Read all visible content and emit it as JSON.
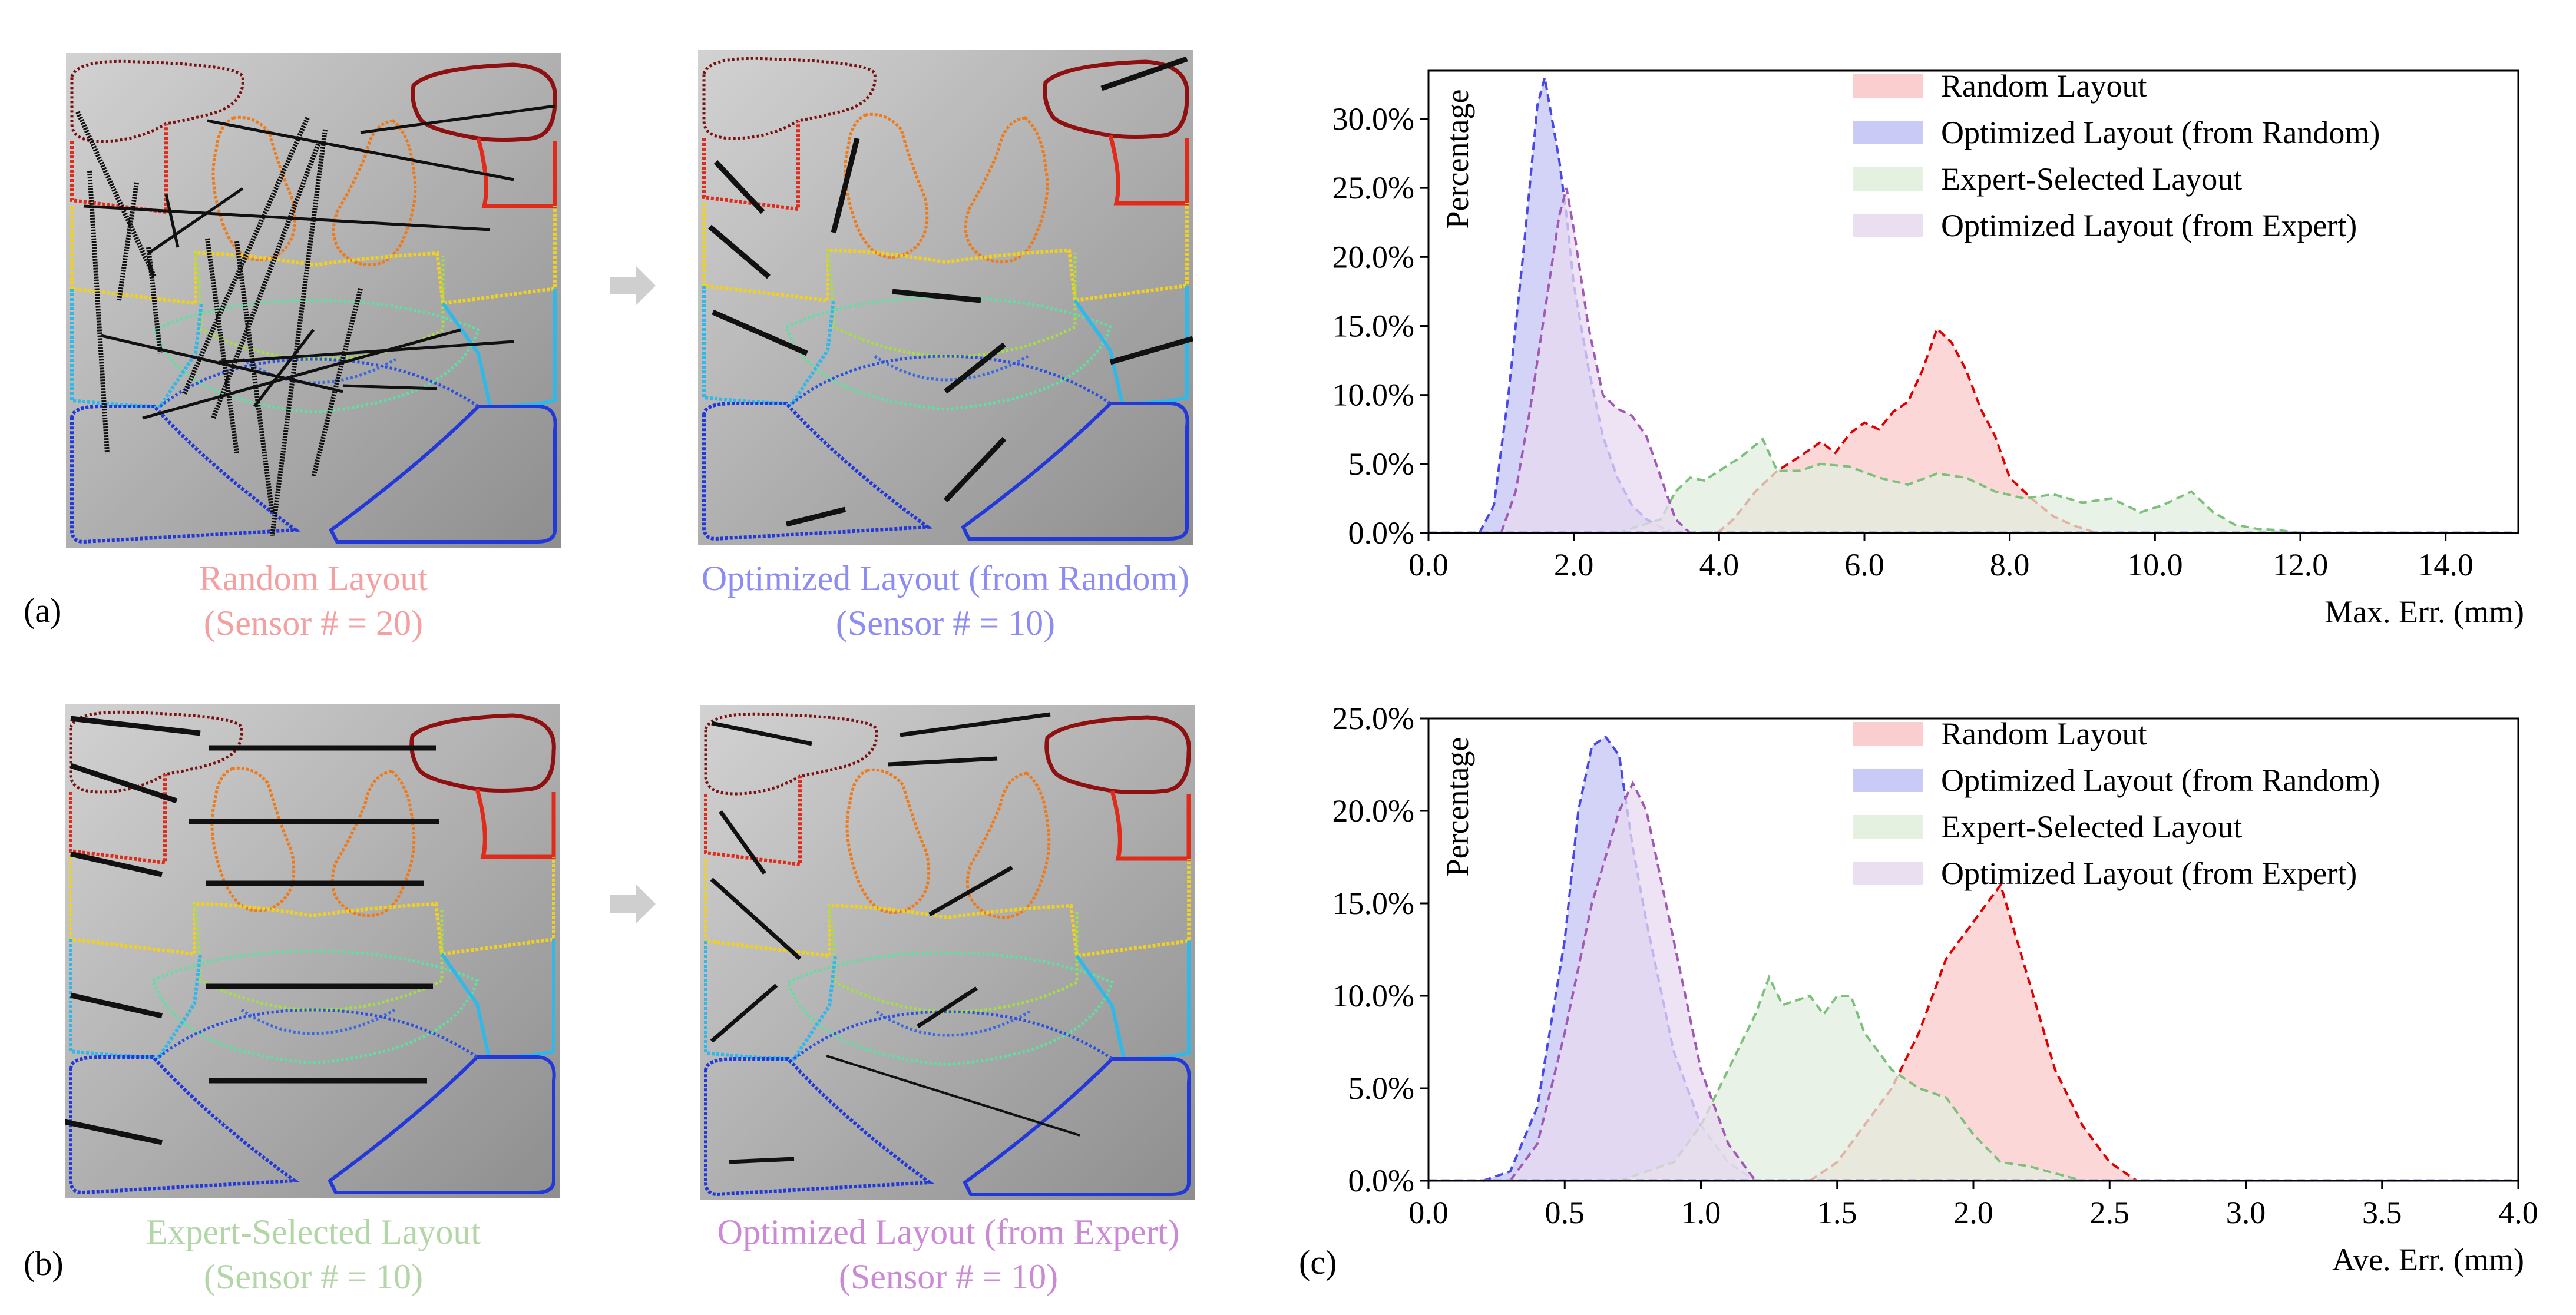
{
  "panels": {
    "a": "(a)",
    "b": "(b)",
    "c": "(c)"
  },
  "layouts": {
    "random": {
      "title": "Random Layout",
      "subtitle": "(Sensor # = 20)",
      "color": "#f4a0a0"
    },
    "opt_random": {
      "title": "Optimized Layout (from Random)",
      "subtitle": "(Sensor # = 10)",
      "color": "#8c8cf2"
    },
    "expert": {
      "title": "Expert-Selected Layout",
      "subtitle": "(Sensor # = 10)",
      "color": "#b2d6a6"
    },
    "opt_expert": {
      "title": "Optimized Layout (from Expert)",
      "subtitle": "(Sensor # = 10)",
      "color": "#cc8ad6"
    }
  },
  "chart_data": [
    {
      "type": "area",
      "title": "",
      "xlabel": "Max. Err. (mm)",
      "ylabel": "Percentage",
      "xlim": [
        0,
        15
      ],
      "ylim": [
        0,
        0.335
      ],
      "xticks": [
        "0.0",
        "2.0",
        "4.0",
        "6.0",
        "8.0",
        "10.0",
        "12.0",
        "14.0"
      ],
      "yticks": [
        "0.0%",
        "5.0%",
        "10.0%",
        "15.0%",
        "20.0%",
        "25.0%",
        "30.0%"
      ],
      "legend": [
        "Random Layout",
        "Optimized Layout (from Random)",
        "Expert-Selected Layout",
        "Optimized Layout (from Expert)"
      ],
      "legend_position": "top-right",
      "series": [
        {
          "name": "Random Layout",
          "color": "#e00000",
          "fill": "#f9c9c9",
          "x": [
            3.8,
            4.0,
            4.2,
            4.5,
            4.8,
            5.1,
            5.4,
            5.6,
            5.8,
            6.0,
            6.2,
            6.4,
            6.6,
            6.8,
            7.0,
            7.2,
            7.4,
            7.6,
            7.8,
            8.0,
            8.3,
            8.6,
            8.9,
            9.2,
            9.5
          ],
          "y": [
            0.0,
            0.001,
            0.01,
            0.03,
            0.045,
            0.055,
            0.066,
            0.058,
            0.072,
            0.08,
            0.075,
            0.088,
            0.095,
            0.118,
            0.148,
            0.138,
            0.118,
            0.09,
            0.07,
            0.04,
            0.025,
            0.012,
            0.005,
            0.0,
            0.0
          ]
        },
        {
          "name": "Optimized Layout (from Random)",
          "color": "#4848e6",
          "fill": "#c4c4f5",
          "x": [
            0.7,
            0.9,
            1.1,
            1.3,
            1.5,
            1.6,
            1.7,
            1.8,
            1.9,
            2.0,
            2.2,
            2.4,
            2.6,
            2.8,
            3.0,
            3.2,
            3.4
          ],
          "y": [
            0.0,
            0.02,
            0.1,
            0.2,
            0.31,
            0.33,
            0.3,
            0.27,
            0.23,
            0.18,
            0.12,
            0.07,
            0.04,
            0.02,
            0.01,
            0.004,
            0.0
          ]
        },
        {
          "name": "Expert-Selected Layout",
          "color": "#7cc07c",
          "fill": "#e1eedd",
          "x": [
            2.6,
            2.9,
            3.2,
            3.4,
            3.6,
            3.8,
            4.0,
            4.3,
            4.6,
            4.8,
            5.1,
            5.4,
            5.8,
            6.2,
            6.6,
            7.0,
            7.4,
            7.8,
            8.2,
            8.6,
            9.0,
            9.4,
            9.8,
            10.1,
            10.5,
            10.8,
            11.1,
            11.4,
            11.7,
            12.0
          ],
          "y": [
            0.0,
            0.005,
            0.01,
            0.03,
            0.04,
            0.038,
            0.045,
            0.055,
            0.068,
            0.045,
            0.045,
            0.05,
            0.048,
            0.04,
            0.035,
            0.043,
            0.04,
            0.03,
            0.025,
            0.028,
            0.022,
            0.025,
            0.015,
            0.02,
            0.03,
            0.015,
            0.006,
            0.003,
            0.002,
            0.0
          ]
        },
        {
          "name": "Optimized Layout (from Expert)",
          "color": "#a05ab4",
          "fill": "#e8daf0",
          "x": [
            1.0,
            1.2,
            1.4,
            1.6,
            1.8,
            1.9,
            2.0,
            2.2,
            2.4,
            2.6,
            2.8,
            3.0,
            3.2,
            3.4,
            3.6
          ],
          "y": [
            0.0,
            0.03,
            0.09,
            0.16,
            0.23,
            0.25,
            0.22,
            0.15,
            0.1,
            0.09,
            0.085,
            0.07,
            0.04,
            0.01,
            0.0
          ]
        }
      ]
    },
    {
      "type": "area",
      "title": "",
      "xlabel": "Ave. Err. (mm)",
      "ylabel": "Percentage",
      "xlim": [
        0,
        4
      ],
      "ylim": [
        0,
        0.25
      ],
      "xticks": [
        "0.0",
        "0.5",
        "1.0",
        "1.5",
        "2.0",
        "2.5",
        "3.0",
        "3.5",
        "4.0"
      ],
      "yticks": [
        "0.0%",
        "5.0%",
        "10.0%",
        "15.0%",
        "20.0%",
        "25.0%"
      ],
      "legend": [
        "Random Layout",
        "Optimized Layout (from Random)",
        "Expert-Selected Layout",
        "Optimized Layout (from Expert)"
      ],
      "legend_position": "top-right",
      "series": [
        {
          "name": "Random Layout",
          "color": "#e00000",
          "fill": "#f9c9c9",
          "x": [
            1.4,
            1.5,
            1.6,
            1.7,
            1.8,
            1.9,
            2.0,
            2.05,
            2.1,
            2.2,
            2.3,
            2.4,
            2.5,
            2.6
          ],
          "y": [
            0.0,
            0.01,
            0.03,
            0.05,
            0.08,
            0.12,
            0.14,
            0.15,
            0.16,
            0.11,
            0.06,
            0.03,
            0.01,
            0.0
          ]
        },
        {
          "name": "Optimized Layout (from Random)",
          "color": "#4848e6",
          "fill": "#c4c4f5",
          "x": [
            0.2,
            0.3,
            0.4,
            0.5,
            0.55,
            0.6,
            0.65,
            0.7,
            0.75,
            0.8,
            0.9,
            1.0,
            1.1,
            1.2
          ],
          "y": [
            0.0,
            0.005,
            0.04,
            0.13,
            0.2,
            0.235,
            0.24,
            0.23,
            0.18,
            0.14,
            0.07,
            0.03,
            0.01,
            0.0
          ]
        },
        {
          "name": "Expert-Selected Layout",
          "color": "#7cc07c",
          "fill": "#e1eedd",
          "x": [
            0.7,
            0.9,
            1.0,
            1.1,
            1.2,
            1.25,
            1.3,
            1.4,
            1.45,
            1.5,
            1.55,
            1.6,
            1.7,
            1.8,
            1.9,
            2.0,
            2.1,
            2.2,
            2.3,
            2.4
          ],
          "y": [
            0.0,
            0.01,
            0.03,
            0.06,
            0.09,
            0.11,
            0.095,
            0.1,
            0.09,
            0.1,
            0.1,
            0.08,
            0.06,
            0.05,
            0.045,
            0.025,
            0.01,
            0.008,
            0.004,
            0.0
          ]
        },
        {
          "name": "Optimized Layout (from Expert)",
          "color": "#a05ab4",
          "fill": "#e8daf0",
          "x": [
            0.3,
            0.4,
            0.5,
            0.6,
            0.7,
            0.75,
            0.8,
            0.9,
            1.0,
            1.1,
            1.2
          ],
          "y": [
            0.0,
            0.02,
            0.08,
            0.15,
            0.2,
            0.215,
            0.2,
            0.13,
            0.06,
            0.02,
            0.0
          ]
        }
      ]
    }
  ]
}
